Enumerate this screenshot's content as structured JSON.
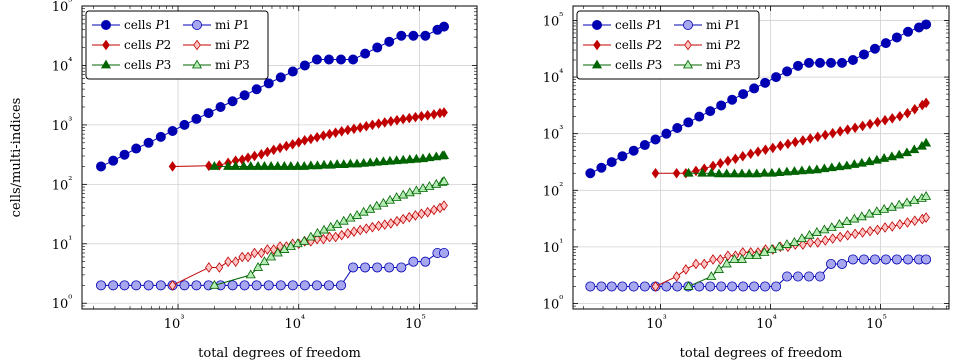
{
  "figure": {
    "xlabel": "total degrees of freedom",
    "ylabel": "cells/multi-indices"
  },
  "colors": {
    "blue": "#0000b3",
    "blue_light": "#a7a7f0",
    "red": "#c00000",
    "red_light": "#ffc4c4",
    "green": "#006400",
    "green_light": "#b4ecb4",
    "grid": "#d2d2d2"
  },
  "chart_data": [
    {
      "type": "line",
      "xscale": "log",
      "yscale": "log",
      "xlim": [
        160,
        300000
      ],
      "ylim": [
        0.8,
        100000
      ],
      "xticks": [
        1000,
        10000,
        100000
      ],
      "xtick_labels": [
        "10³",
        "10⁴",
        "10⁵"
      ],
      "yticks": [
        1,
        10,
        100,
        1000,
        10000,
        100000
      ],
      "ytick_labels": [
        "10⁰",
        "10¹",
        "10²",
        "10³",
        "10⁴",
        "10⁵"
      ],
      "xlabel": "total degrees of freedom",
      "ylabel": "cells/multi-indices",
      "grid": true,
      "legend": {
        "placement": "top-left",
        "columns": 2
      },
      "series": [
        {
          "name": "cells P1",
          "marker": "circle",
          "fill": "solid",
          "color": "#0000b3",
          "x": [
            230,
            290,
            360,
            450,
            570,
            720,
            900,
            1130,
            1420,
            1790,
            2250,
            2830,
            3560,
            4480,
            5640,
            7100,
            8930,
            11240,
            14150,
            17800,
            22400,
            28200,
            35500,
            44700,
            56200,
            70800,
            89100,
            112000,
            141000,
            160000
          ],
          "y": [
            200,
            250,
            315,
            400,
            500,
            630,
            790,
            1000,
            1260,
            1580,
            2000,
            2500,
            3150,
            3980,
            5000,
            6300,
            7900,
            10000,
            12600,
            12600,
            12600,
            12600,
            15800,
            20000,
            25100,
            31600,
            31600,
            31600,
            39800,
            45000
          ]
        },
        {
          "name": "mi P1",
          "marker": "circle",
          "fill": "open",
          "color": "#0000b3",
          "x": [
            230,
            290,
            360,
            450,
            570,
            720,
            900,
            1130,
            1420,
            1790,
            2250,
            2830,
            3560,
            4480,
            5640,
            7100,
            8930,
            11240,
            14150,
            17800,
            22400,
            28200,
            35500,
            44700,
            56200,
            70800,
            89100,
            112000,
            141000,
            160000
          ],
          "y": [
            2,
            2,
            2,
            2,
            2,
            2,
            2,
            2,
            2,
            2,
            2,
            2,
            2,
            2,
            2,
            2,
            2,
            2,
            2,
            2,
            2,
            4,
            4,
            4,
            4,
            4,
            5,
            5,
            7,
            7
          ]
        },
        {
          "name": "cells P2",
          "marker": "diamond",
          "fill": "solid",
          "color": "#c00000",
          "x": [
            900,
            1800,
            2200,
            2600,
            3000,
            3400,
            3800,
            4300,
            4900,
            5500,
            6200,
            7000,
            7900,
            8900,
            10000,
            11200,
            12600,
            14200,
            16000,
            18000,
            20200,
            22700,
            25500,
            28700,
            32300,
            36300,
            40800,
            45900,
            51600,
            58000,
            65200,
            73300,
            82400,
            92700,
            104000,
            117000,
            132000,
            148000,
            160000
          ],
          "y": [
            200,
            205,
            210,
            230,
            250,
            260,
            280,
            300,
            320,
            350,
            380,
            410,
            440,
            470,
            510,
            550,
            580,
            620,
            660,
            700,
            740,
            780,
            820,
            860,
            900,
            950,
            1000,
            1050,
            1100,
            1150,
            1200,
            1250,
            1300,
            1350,
            1400,
            1450,
            1500,
            1580,
            1620
          ]
        },
        {
          "name": "mi P2",
          "marker": "diamond",
          "fill": "open",
          "color": "#c00000",
          "x": [
            900,
            1800,
            2200,
            2600,
            3000,
            3400,
            3800,
            4300,
            4900,
            5500,
            6200,
            7000,
            7900,
            8900,
            10000,
            11200,
            12600,
            14200,
            16000,
            18000,
            20200,
            22700,
            25500,
            28700,
            32300,
            36300,
            40800,
            45900,
            51600,
            58000,
            65200,
            73300,
            82400,
            92700,
            104000,
            117000,
            132000,
            148000,
            160000
          ],
          "y": [
            2,
            4,
            4,
            5,
            5,
            6,
            6,
            7,
            7,
            8,
            8,
            9,
            9,
            10,
            10,
            11,
            11,
            12,
            12,
            13,
            13,
            14,
            15,
            16,
            17,
            18,
            19,
            20,
            21,
            22,
            24,
            26,
            28,
            30,
            32,
            34,
            37,
            40,
            44
          ]
        },
        {
          "name": "cells P3",
          "marker": "triangle",
          "fill": "solid",
          "color": "#006400",
          "x": [
            2000,
            2600,
            3000,
            3500,
            4000,
            4600,
            5200,
            5900,
            6700,
            7600,
            8600,
            9800,
            11100,
            12600,
            14300,
            16200,
            18400,
            20800,
            23600,
            26800,
            30400,
            34500,
            39100,
            44300,
            50300,
            57000,
            64700,
            73400,
            83200,
            94400,
            107000,
            121000,
            138000,
            155000,
            160000
          ],
          "y": [
            200,
            200,
            200,
            200,
            200,
            200,
            200,
            200,
            200,
            200,
            200,
            200,
            200,
            205,
            205,
            210,
            210,
            215,
            215,
            220,
            220,
            225,
            230,
            235,
            240,
            245,
            250,
            255,
            260,
            265,
            270,
            280,
            290,
            300,
            305
          ]
        },
        {
          "name": "mi P3",
          "marker": "triangle",
          "fill": "open",
          "color": "#006400",
          "x": [
            2000,
            4000,
            4600,
            5200,
            5900,
            6700,
            7600,
            8600,
            9800,
            11100,
            12600,
            14300,
            16200,
            18400,
            20800,
            23600,
            26800,
            30400,
            34500,
            39100,
            44300,
            50300,
            57000,
            64700,
            73400,
            83200,
            94400,
            107000,
            121000,
            138000,
            155000,
            160000
          ],
          "y": [
            2,
            3,
            4,
            5,
            6,
            7,
            8,
            9,
            10,
            11,
            13,
            15,
            17,
            19,
            21,
            24,
            27,
            30,
            34,
            38,
            43,
            48,
            54,
            60,
            66,
            72,
            78,
            85,
            92,
            100,
            108,
            112
          ]
        }
      ]
    },
    {
      "type": "line",
      "xscale": "log",
      "yscale": "log",
      "xlim": [
        160,
        420000
      ],
      "ylim": [
        0.8,
        180000
      ],
      "xticks": [
        1000,
        10000,
        100000
      ],
      "xtick_labels": [
        "10³",
        "10⁴",
        "10⁵"
      ],
      "yticks": [
        1,
        10,
        100,
        1000,
        10000,
        100000
      ],
      "ytick_labels": [
        "10⁰",
        "10¹",
        "10²",
        "10³",
        "10⁴",
        "10⁵"
      ],
      "xlabel": "total degrees of freedom",
      "ylabel": "",
      "grid": true,
      "legend": {
        "placement": "top-left",
        "columns": 2
      },
      "series": [
        {
          "name": "cells P1",
          "marker": "circle",
          "fill": "solid",
          "color": "#0000b3",
          "x": [
            230,
            290,
            360,
            450,
            570,
            720,
            900,
            1130,
            1420,
            1790,
            2250,
            2830,
            3560,
            4480,
            5640,
            7100,
            8930,
            11240,
            14150,
            17800,
            22400,
            28200,
            35500,
            44700,
            56200,
            70800,
            89100,
            112000,
            141000,
            178000,
            224000,
            260000
          ],
          "y": [
            200,
            250,
            315,
            400,
            500,
            630,
            790,
            1000,
            1260,
            1580,
            2000,
            2500,
            3150,
            3980,
            5000,
            6300,
            7900,
            10000,
            12600,
            15800,
            17800,
            17800,
            17800,
            17800,
            20000,
            25100,
            31600,
            39800,
            50100,
            63100,
            75000,
            85000
          ]
        },
        {
          "name": "mi P1",
          "marker": "circle",
          "fill": "open",
          "color": "#0000b3",
          "x": [
            230,
            290,
            360,
            450,
            570,
            720,
            900,
            1130,
            1420,
            1790,
            2250,
            2830,
            3560,
            4480,
            5640,
            7100,
            8930,
            11240,
            14150,
            17800,
            22400,
            28200,
            35500,
            44700,
            56200,
            70800,
            89100,
            112000,
            141000,
            178000,
            224000,
            260000
          ],
          "y": [
            2,
            2,
            2,
            2,
            2,
            2,
            2,
            2,
            2,
            2,
            2,
            2,
            2,
            2,
            2,
            2,
            2,
            2,
            3,
            3,
            3,
            3,
            5,
            5,
            6,
            6,
            6,
            6,
            6,
            6,
            6,
            6
          ]
        },
        {
          "name": "cells P2",
          "marker": "diamond",
          "fill": "solid",
          "color": "#c00000",
          "x": [
            900,
            1400,
            1700,
            2100,
            2500,
            3000,
            3500,
            4100,
            4800,
            5600,
            6600,
            7700,
            9000,
            10500,
            12300,
            14400,
            16800,
            19700,
            23000,
            26900,
            31500,
            36800,
            43000,
            50300,
            58800,
            68800,
            80400,
            94000,
            110000,
            128000,
            150000,
            176000,
            205000,
            240000,
            260000
          ],
          "y": [
            200,
            200,
            200,
            220,
            240,
            270,
            300,
            330,
            360,
            400,
            440,
            480,
            520,
            560,
            610,
            660,
            710,
            760,
            820,
            880,
            950,
            1020,
            1100,
            1180,
            1270,
            1370,
            1480,
            1600,
            1730,
            1870,
            2030,
            2300,
            2700,
            3200,
            3500
          ]
        },
        {
          "name": "mi P2",
          "marker": "diamond",
          "fill": "open",
          "color": "#c00000",
          "x": [
            900,
            1400,
            1700,
            2100,
            2500,
            3000,
            3500,
            4100,
            4800,
            5600,
            6600,
            7700,
            9000,
            10500,
            12300,
            14400,
            16800,
            19700,
            23000,
            26900,
            31500,
            36800,
            43000,
            50300,
            58800,
            68800,
            80400,
            94000,
            110000,
            128000,
            150000,
            176000,
            205000,
            240000,
            260000
          ],
          "y": [
            2,
            3,
            4,
            5,
            5,
            6,
            6,
            7,
            7,
            8,
            8,
            8,
            9,
            9,
            10,
            10,
            11,
            11,
            12,
            12,
            13,
            14,
            15,
            16,
            17,
            18,
            19,
            20,
            22,
            23,
            25,
            27,
            29,
            31,
            33
          ]
        },
        {
          "name": "cells P3",
          "marker": "triangle",
          "fill": "solid",
          "color": "#006400",
          "x": [
            1800,
            2400,
            2900,
            3400,
            4000,
            4700,
            5500,
            6400,
            7500,
            8800,
            10300,
            12000,
            14100,
            16500,
            19300,
            22600,
            26400,
            30900,
            36100,
            42300,
            49500,
            57900,
            67700,
            79200,
            92700,
            108000,
            127000,
            148000,
            174000,
            203000,
            238000,
            260000
          ],
          "y": [
            200,
            200,
            200,
            195,
            195,
            195,
            195,
            195,
            195,
            200,
            200,
            205,
            210,
            215,
            220,
            225,
            230,
            240,
            250,
            260,
            270,
            285,
            300,
            320,
            340,
            365,
            390,
            420,
            460,
            520,
            600,
            680
          ]
        },
        {
          "name": "mi P3",
          "marker": "triangle",
          "fill": "open",
          "color": "#006400",
          "x": [
            1800,
            2900,
            3400,
            4000,
            4700,
            5500,
            6400,
            7500,
            8800,
            10300,
            12000,
            14100,
            16500,
            19300,
            22600,
            26400,
            30900,
            36100,
            42300,
            49500,
            57900,
            67700,
            79200,
            92700,
            108000,
            127000,
            148000,
            174000,
            203000,
            238000,
            260000
          ],
          "y": [
            2,
            3,
            4,
            5,
            6,
            6,
            7,
            7,
            8,
            9,
            10,
            11,
            12,
            14,
            16,
            18,
            20,
            22,
            25,
            28,
            31,
            34,
            38,
            42,
            46,
            50,
            55,
            60,
            66,
            72,
            78
          ]
        }
      ]
    }
  ]
}
